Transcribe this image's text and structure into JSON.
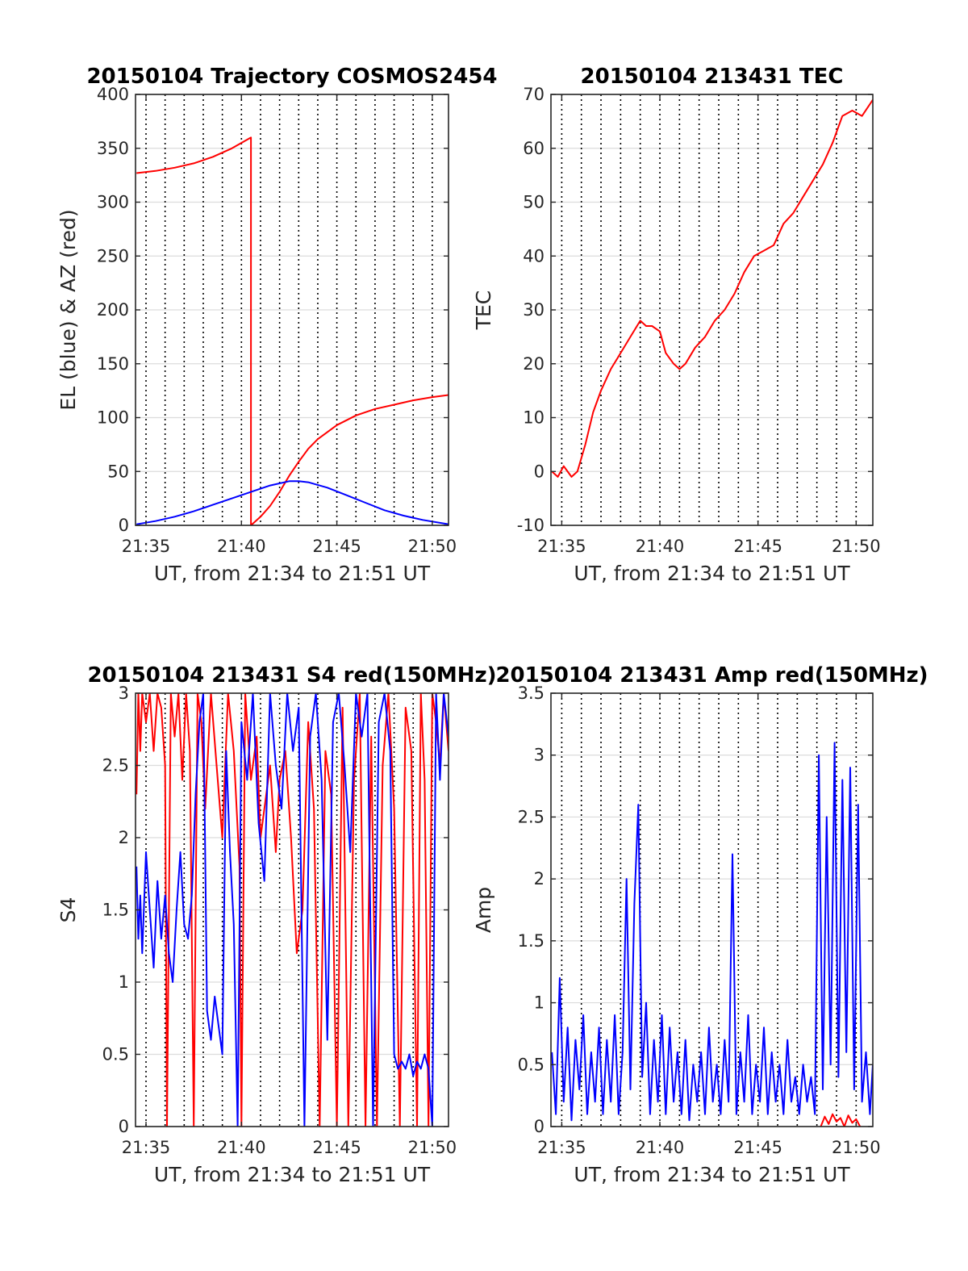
{
  "chart_data": [
    {
      "type": "line",
      "title": "20150104 Trajectory COSMOS2454",
      "xlabel": "UT, from 21:34 to 21:51 UT",
      "ylabel": "EL (blue) & AZ (red)",
      "x_unit": "minutes after 21:00",
      "xlim": [
        34.45,
        50.85
      ],
      "ylim": [
        0,
        400
      ],
      "yticks": [
        0,
        50,
        100,
        150,
        200,
        250,
        300,
        350,
        400
      ],
      "xticks": [
        35,
        40,
        45,
        50
      ],
      "xticklabels": [
        "21:35",
        "21:40",
        "21:45",
        "21:50"
      ],
      "series": [
        {
          "color": "#ff0000",
          "x": [
            34.5,
            35.5,
            36.5,
            37.5,
            38.5,
            39.5,
            40.5,
            40.5,
            41.0,
            41.5,
            42.0,
            42.5,
            43.0,
            43.5,
            44.0,
            45.0,
            46.0,
            47.0,
            48.0,
            49.0,
            50.0,
            50.85
          ],
          "y": [
            327,
            329,
            332,
            336,
            342,
            350,
            360,
            0,
            8,
            18,
            31,
            46,
            59,
            71,
            80,
            93,
            102,
            108,
            112,
            116,
            119,
            121
          ]
        },
        {
          "color": "#0000ff",
          "x": [
            34.5,
            35.5,
            36.5,
            37.5,
            38.5,
            39.5,
            40.5,
            41.5,
            42.5,
            43.0,
            43.5,
            44.5,
            45.5,
            46.5,
            47.5,
            48.5,
            49.5,
            50.85
          ],
          "y": [
            1,
            4,
            8,
            13,
            19,
            25,
            31,
            37,
            41,
            41,
            40,
            35,
            28,
            21,
            14,
            9,
            5,
            1
          ]
        }
      ]
    },
    {
      "type": "line",
      "title": "20150104 213431 TEC",
      "xlabel": "UT, from 21:34 to 21:51 UT",
      "ylabel": "TEC",
      "x_unit": "minutes after 21:00",
      "xlim": [
        34.45,
        50.85
      ],
      "ylim": [
        -10,
        70
      ],
      "yticks": [
        -10,
        0,
        10,
        20,
        30,
        40,
        50,
        60,
        70
      ],
      "xticks": [
        35,
        40,
        45,
        50
      ],
      "xticklabels": [
        "21:35",
        "21:40",
        "21:45",
        "21:50"
      ],
      "series": [
        {
          "color": "#ff0000",
          "x": [
            34.5,
            34.8,
            35.1,
            35.5,
            35.8,
            36.2,
            36.6,
            37.0,
            37.5,
            38.0,
            38.5,
            39.0,
            39.3,
            39.6,
            40.0,
            40.3,
            40.7,
            41.0,
            41.3,
            41.8,
            42.3,
            42.8,
            43.3,
            43.8,
            44.3,
            44.8,
            45.3,
            45.8,
            46.3,
            46.8,
            47.3,
            47.8,
            48.3,
            48.8,
            49.3,
            49.8,
            50.3,
            50.85
          ],
          "y": [
            0,
            -1,
            1,
            -1,
            0,
            5,
            11,
            15,
            19,
            22,
            25,
            28,
            27,
            27,
            26,
            22,
            20,
            19,
            20,
            23,
            25,
            28,
            30,
            33,
            37,
            40,
            41,
            42,
            46,
            48,
            51,
            54,
            57,
            61,
            66,
            67,
            66,
            69
          ]
        }
      ]
    },
    {
      "type": "line",
      "title": "20150104 213431 S4 red(150MHz)",
      "xlabel": "UT, from 21:34 to 21:51 UT",
      "ylabel": "S4",
      "x_unit": "minutes after 21:00",
      "xlim": [
        34.45,
        50.85
      ],
      "ylim": [
        0,
        3
      ],
      "yticks": [
        0,
        0.5,
        1,
        1.5,
        2,
        2.5,
        3
      ],
      "xticks": [
        35,
        40,
        45,
        50
      ],
      "xticklabels": [
        "21:35",
        "21:40",
        "21:45",
        "21:50"
      ],
      "series": [
        {
          "color": "#ff0000",
          "x": [
            34.5,
            34.6,
            34.7,
            34.8,
            35.0,
            35.2,
            35.4,
            35.6,
            35.8,
            36.0,
            36.1,
            36.3,
            36.5,
            36.7,
            36.9,
            37.1,
            37.3,
            37.5,
            37.7,
            37.9,
            38.1,
            38.4,
            38.7,
            39.0,
            39.3,
            39.6,
            39.9,
            40.0,
            40.2,
            40.5,
            40.8,
            41.0,
            41.5,
            41.8,
            42.0,
            42.3,
            42.6,
            42.9,
            43.2,
            43.5,
            43.8,
            44.1,
            44.4,
            44.7,
            45.0,
            45.3,
            45.6,
            45.9,
            46.2,
            46.5,
            46.8,
            47.1,
            47.4,
            47.7,
            48.0,
            48.3,
            48.6,
            48.9,
            49.2,
            49.4,
            49.6,
            49.8,
            50.0,
            50.2,
            50.4,
            50.6,
            50.85
          ],
          "y": [
            2.3,
            3.0,
            2.6,
            3.0,
            2.8,
            3.0,
            2.6,
            3.0,
            2.9,
            2.5,
            0.0,
            3.0,
            2.7,
            3.0,
            2.4,
            3.0,
            2.6,
            0.0,
            3.0,
            2.8,
            2.2,
            3.0,
            2.5,
            2.0,
            3.0,
            2.6,
            1.8,
            0.0,
            3.0,
            2.4,
            2.7,
            2.0,
            2.5,
            1.9,
            2.4,
            2.6,
            2.0,
            1.2,
            1.5,
            2.8,
            2.2,
            0.0,
            2.6,
            2.3,
            0.0,
            2.9,
            0.0,
            2.4,
            3.0,
            0.0,
            2.7,
            0.0,
            2.5,
            3.0,
            2.2,
            0.0,
            2.9,
            2.6,
            0.0,
            3.0,
            2.4,
            0.0,
            3.0,
            2.8,
            2.5,
            3.0,
            2.6
          ]
        },
        {
          "color": "#0000ff",
          "x": [
            34.5,
            34.6,
            34.7,
            34.8,
            35.0,
            35.2,
            35.4,
            35.6,
            35.8,
            36.0,
            36.2,
            36.4,
            36.6,
            36.8,
            37.0,
            37.2,
            37.4,
            37.6,
            37.8,
            38.0,
            38.2,
            38.4,
            38.6,
            38.8,
            39.0,
            39.2,
            39.4,
            39.6,
            39.8,
            40.0,
            40.3,
            40.6,
            40.9,
            41.2,
            41.5,
            41.8,
            42.1,
            42.4,
            42.7,
            43.0,
            43.3,
            43.6,
            43.9,
            44.2,
            44.5,
            44.8,
            45.1,
            45.4,
            45.7,
            46.0,
            46.3,
            46.6,
            46.9,
            47.2,
            47.5,
            47.8,
            48.0,
            48.2,
            48.4,
            48.6,
            48.8,
            49.0,
            49.2,
            49.4,
            49.6,
            49.8,
            50.0,
            50.2,
            50.4,
            50.6,
            50.85
          ],
          "y": [
            1.8,
            1.3,
            1.6,
            1.2,
            1.9,
            1.5,
            1.1,
            1.7,
            1.3,
            1.6,
            1.2,
            1.0,
            1.5,
            1.9,
            1.4,
            1.3,
            1.6,
            2.3,
            2.8,
            3.0,
            0.8,
            0.6,
            0.9,
            0.7,
            0.5,
            2.6,
            1.9,
            1.4,
            0.0,
            2.8,
            2.4,
            3.0,
            2.1,
            1.7,
            3.0,
            2.5,
            2.2,
            3.0,
            2.6,
            2.9,
            0.0,
            2.7,
            3.0,
            2.4,
            0.6,
            2.8,
            3.0,
            2.5,
            1.9,
            3.0,
            2.7,
            3.0,
            0.0,
            2.8,
            3.0,
            2.6,
            0.5,
            0.4,
            0.45,
            0.4,
            0.5,
            0.35,
            0.45,
            0.4,
            0.5,
            0.4,
            0.0,
            3.0,
            2.4,
            3.0,
            2.7
          ]
        }
      ]
    },
    {
      "type": "line",
      "title": "20150104 213431 Amp red(150MHz)",
      "xlabel": "UT, from 21:34 to 21:51 UT",
      "ylabel": "Amp",
      "x_unit": "minutes after 21:00",
      "xlim": [
        34.45,
        50.85
      ],
      "ylim": [
        0,
        3.5
      ],
      "yticks": [
        0,
        0.5,
        1,
        1.5,
        2,
        2.5,
        3,
        3.5
      ],
      "xticks": [
        35,
        40,
        45,
        50
      ],
      "xticklabels": [
        "21:35",
        "21:40",
        "21:45",
        "21:50"
      ],
      "series": [
        {
          "color": "#ff0000",
          "x": [
            48.2,
            48.4,
            48.6,
            48.8,
            49.0,
            49.2,
            49.4,
            49.6,
            49.8,
            50.0,
            50.2
          ],
          "y": [
            0.0,
            0.08,
            0.02,
            0.1,
            0.04,
            0.07,
            0.0,
            0.09,
            0.03,
            0.06,
            0.0
          ]
        },
        {
          "color": "#0000ff",
          "x": [
            34.5,
            34.7,
            34.9,
            35.1,
            35.3,
            35.5,
            35.7,
            35.9,
            36.1,
            36.3,
            36.5,
            36.7,
            36.9,
            37.1,
            37.3,
            37.5,
            37.7,
            37.9,
            38.1,
            38.3,
            38.5,
            38.7,
            38.9,
            39.1,
            39.3,
            39.5,
            39.7,
            39.9,
            40.1,
            40.3,
            40.5,
            40.7,
            40.9,
            41.1,
            41.3,
            41.5,
            41.7,
            41.9,
            42.1,
            42.3,
            42.5,
            42.7,
            42.9,
            43.1,
            43.3,
            43.5,
            43.7,
            43.9,
            44.1,
            44.3,
            44.5,
            44.7,
            44.9,
            45.1,
            45.3,
            45.5,
            45.7,
            45.9,
            46.1,
            46.3,
            46.5,
            46.7,
            46.9,
            47.1,
            47.3,
            47.5,
            47.7,
            47.9,
            48.1,
            48.3,
            48.5,
            48.7,
            48.9,
            49.1,
            49.3,
            49.5,
            49.7,
            49.9,
            50.1,
            50.3,
            50.5,
            50.7,
            50.85
          ],
          "y": [
            0.6,
            0.1,
            1.2,
            0.2,
            0.8,
            0.05,
            0.7,
            0.3,
            0.9,
            0.1,
            0.6,
            0.2,
            0.8,
            0.1,
            0.7,
            0.2,
            0.9,
            0.1,
            0.6,
            2.0,
            0.3,
            1.8,
            2.6,
            0.4,
            1.0,
            0.1,
            0.7,
            0.2,
            0.9,
            0.1,
            0.8,
            0.2,
            0.6,
            0.1,
            0.7,
            0.05,
            0.5,
            0.2,
            0.6,
            0.1,
            0.8,
            0.2,
            0.5,
            0.1,
            0.7,
            0.2,
            2.2,
            0.1,
            0.6,
            0.2,
            0.9,
            0.1,
            0.5,
            0.2,
            0.8,
            0.1,
            0.6,
            0.2,
            0.5,
            0.1,
            0.7,
            0.2,
            0.4,
            0.1,
            0.5,
            0.2,
            0.4,
            0.1,
            3.0,
            0.3,
            2.5,
            0.5,
            3.1,
            0.4,
            2.8,
            0.6,
            2.9,
            0.3,
            2.6,
            0.2,
            0.6,
            0.1,
            0.5
          ]
        }
      ]
    }
  ]
}
